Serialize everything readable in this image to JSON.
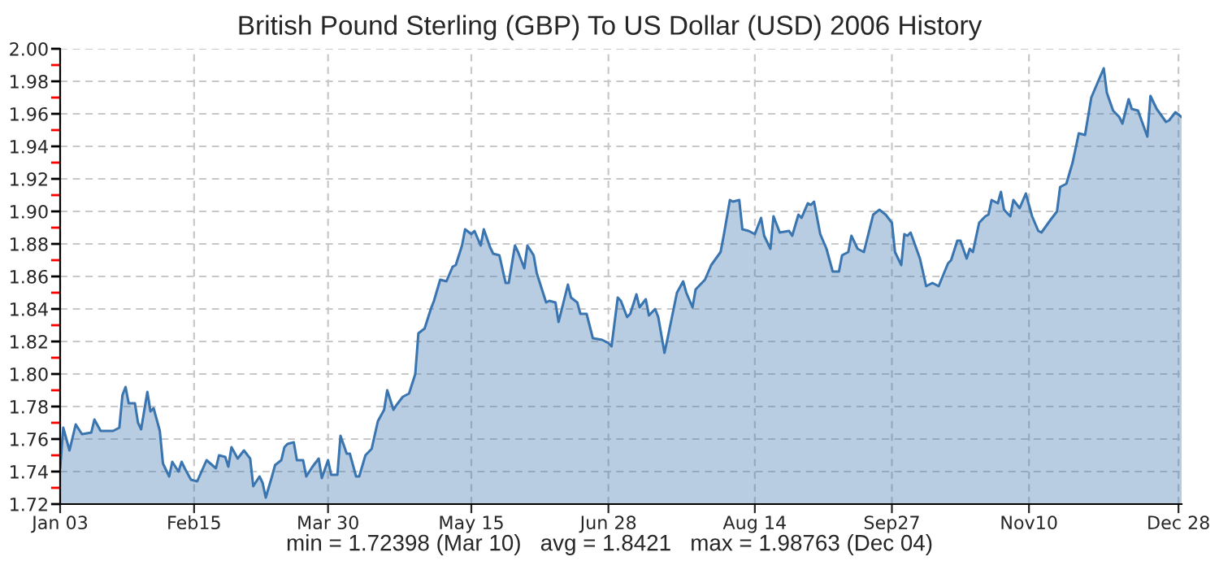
{
  "chart_data": {
    "type": "area",
    "title": "British Pound Sterling (GBP) To US Dollar (USD) 2006 History",
    "annotations": [
      "min = 1.72398 (Mar 10)   avg = 1.8421   max = 1.98763 (Dec 04)"
    ],
    "x": [
      "2006-01-03",
      "2006-01-04",
      "2006-01-06",
      "2006-01-08",
      "2006-01-10",
      "2006-01-13",
      "2006-01-14",
      "2006-01-16",
      "2006-01-20",
      "2006-01-22",
      "2006-01-23",
      "2006-01-24",
      "2006-01-25",
      "2006-01-27",
      "2006-01-28",
      "2006-01-29",
      "2006-01-31",
      "2006-02-01",
      "2006-02-02",
      "2006-02-04",
      "2006-02-05",
      "2006-02-07",
      "2006-02-08",
      "2006-02-10",
      "2006-02-11",
      "2006-02-12",
      "2006-02-14",
      "2006-02-16",
      "2006-02-19",
      "2006-02-22",
      "2006-02-23",
      "2006-02-25",
      "2006-02-26",
      "2006-02-27",
      "2006-03-01",
      "2006-03-03",
      "2006-03-05",
      "2006-03-06",
      "2006-03-08",
      "2006-03-09",
      "2006-03-10",
      "2006-03-12",
      "2006-03-13",
      "2006-03-15",
      "2006-03-16",
      "2006-03-17",
      "2006-03-19",
      "2006-03-20",
      "2006-03-22",
      "2006-03-23",
      "2006-03-25",
      "2006-03-27",
      "2006-03-28",
      "2006-03-30",
      "2006-03-31",
      "2006-04-02",
      "2006-04-03",
      "2006-04-05",
      "2006-04-06",
      "2006-04-08",
      "2006-04-09",
      "2006-04-11",
      "2006-04-13",
      "2006-04-15",
      "2006-04-17",
      "2006-04-18",
      "2006-04-20",
      "2006-04-21",
      "2006-04-23",
      "2006-04-25",
      "2006-04-27",
      "2006-04-28",
      "2006-04-30",
      "2006-05-02",
      "2006-05-03",
      "2006-05-05",
      "2006-05-07",
      "2006-05-09",
      "2006-05-10",
      "2006-05-12",
      "2006-05-13",
      "2006-05-15",
      "2006-05-16",
      "2006-05-18",
      "2006-05-19",
      "2006-05-21",
      "2006-05-22",
      "2006-05-24",
      "2006-05-26",
      "2006-05-27",
      "2006-05-29",
      "2006-05-30",
      "2006-06-01",
      "2006-06-02",
      "2006-06-04",
      "2006-06-05",
      "2006-06-08",
      "2006-06-09",
      "2006-06-11",
      "2006-06-12",
      "2006-06-15",
      "2006-06-16",
      "2006-06-18",
      "2006-06-19",
      "2006-06-21",
      "2006-06-23",
      "2006-06-26",
      "2006-06-28",
      "2006-06-29",
      "2006-07-01",
      "2006-07-02",
      "2006-07-04",
      "2006-07-05",
      "2006-07-07",
      "2006-07-08",
      "2006-07-10",
      "2006-07-11",
      "2006-07-13",
      "2006-07-14",
      "2006-07-16",
      "2006-07-17",
      "2006-07-20",
      "2006-07-22",
      "2006-07-23",
      "2006-07-25",
      "2006-07-26",
      "2006-07-29",
      "2006-07-31",
      "2006-08-03",
      "2006-08-04",
      "2006-08-06",
      "2006-08-07",
      "2006-08-09",
      "2006-08-10",
      "2006-08-12",
      "2006-08-14",
      "2006-08-16",
      "2006-08-17",
      "2006-08-19",
      "2006-08-20",
      "2006-08-22",
      "2006-08-25",
      "2006-08-26",
      "2006-08-28",
      "2006-08-29",
      "2006-08-31",
      "2006-09-01",
      "2006-09-02",
      "2006-09-04",
      "2006-09-06",
      "2006-09-08",
      "2006-09-10",
      "2006-09-11",
      "2006-09-13",
      "2006-09-14",
      "2006-09-16",
      "2006-09-18",
      "2006-09-21",
      "2006-09-23",
      "2006-09-25",
      "2006-09-27",
      "2006-09-28",
      "2006-09-30",
      "2006-10-01",
      "2006-10-02",
      "2006-10-03",
      "2006-10-06",
      "2006-10-08",
      "2006-10-10",
      "2006-10-12",
      "2006-10-15",
      "2006-10-16",
      "2006-10-18",
      "2006-10-19",
      "2006-10-21",
      "2006-10-22",
      "2006-10-23",
      "2006-10-25",
      "2006-10-27",
      "2006-10-28",
      "2006-10-29",
      "2006-10-31",
      "2006-11-01",
      "2006-11-02",
      "2006-11-04",
      "2006-11-05",
      "2006-11-07",
      "2006-11-09",
      "2006-11-11",
      "2006-11-13",
      "2006-11-14",
      "2006-11-17",
      "2006-11-19",
      "2006-11-20",
      "2006-11-22",
      "2006-11-24",
      "2006-11-26",
      "2006-11-28",
      "2006-11-30",
      "2006-12-04",
      "2006-12-05",
      "2006-12-07",
      "2006-12-09",
      "2006-12-10",
      "2006-12-12",
      "2006-12-13",
      "2006-12-15",
      "2006-12-18",
      "2006-12-19",
      "2006-12-21",
      "2006-12-24",
      "2006-12-25",
      "2006-12-27",
      "2006-12-29"
    ],
    "series": [
      {
        "color": "#3a75b0",
        "values": [
          1.742,
          1.767,
          1.753,
          1.769,
          1.763,
          1.764,
          1.772,
          1.765,
          1.765,
          1.767,
          1.787,
          1.792,
          1.782,
          1.782,
          1.77,
          1.766,
          1.789,
          1.777,
          1.779,
          1.765,
          1.745,
          1.737,
          1.746,
          1.74,
          1.746,
          1.742,
          1.735,
          1.734,
          1.747,
          1.742,
          1.75,
          1.749,
          1.743,
          1.755,
          1.748,
          1.753,
          1.748,
          1.731,
          1.737,
          1.733,
          1.724,
          1.737,
          1.744,
          1.747,
          1.755,
          1.757,
          1.758,
          1.747,
          1.747,
          1.737,
          1.743,
          1.748,
          1.736,
          1.747,
          1.738,
          1.738,
          1.762,
          1.751,
          1.751,
          1.737,
          1.737,
          1.75,
          1.754,
          1.771,
          1.778,
          1.79,
          1.778,
          1.781,
          1.786,
          1.788,
          1.8,
          1.825,
          1.828,
          1.84,
          1.845,
          1.858,
          1.857,
          1.866,
          1.867,
          1.879,
          1.889,
          1.886,
          1.888,
          1.879,
          1.889,
          1.878,
          1.874,
          1.873,
          1.856,
          1.856,
          1.879,
          1.875,
          1.865,
          1.879,
          1.873,
          1.862,
          1.844,
          1.845,
          1.844,
          1.832,
          1.855,
          1.847,
          1.844,
          1.837,
          1.837,
          1.822,
          1.821,
          1.819,
          1.817,
          1.847,
          1.845,
          1.835,
          1.837,
          1.849,
          1.841,
          1.846,
          1.836,
          1.84,
          1.835,
          1.813,
          1.822,
          1.85,
          1.857,
          1.85,
          1.841,
          1.852,
          1.858,
          1.867,
          1.875,
          1.885,
          1.907,
          1.906,
          1.907,
          1.889,
          1.888,
          1.886,
          1.896,
          1.885,
          1.877,
          1.897,
          1.887,
          1.888,
          1.885,
          1.898,
          1.896,
          1.905,
          1.904,
          1.906,
          1.886,
          1.877,
          1.863,
          1.863,
          1.873,
          1.875,
          1.885,
          1.877,
          1.875,
          1.898,
          1.901,
          1.898,
          1.893,
          1.875,
          1.867,
          1.886,
          1.885,
          1.887,
          1.871,
          1.854,
          1.856,
          1.854,
          1.868,
          1.87,
          1.882,
          1.882,
          1.871,
          1.877,
          1.875,
          1.893,
          1.897,
          1.898,
          1.907,
          1.905,
          1.912,
          1.901,
          1.897,
          1.907,
          1.902,
          1.911,
          1.897,
          1.888,
          1.887,
          1.895,
          1.9,
          1.915,
          1.917,
          1.93,
          1.948,
          1.947,
          1.97,
          1.988,
          1.973,
          1.962,
          1.958,
          1.954,
          1.969,
          1.963,
          1.962,
          1.946,
          1.971,
          1.963,
          1.955,
          1.956,
          1.961,
          1.958
        ]
      }
    ],
    "xlim": [
      "2006-01-03",
      "2006-12-29"
    ],
    "xticks": [
      {
        "value": "2006-01-03",
        "label": "Jan 03"
      },
      {
        "value": "2006-02-15",
        "label": "Feb15"
      },
      {
        "value": "2006-03-30",
        "label": "Mar 30"
      },
      {
        "value": "2006-05-15",
        "label": "May 15"
      },
      {
        "value": "2006-06-28",
        "label": "Jun 28"
      },
      {
        "value": "2006-08-14",
        "label": "Aug 14"
      },
      {
        "value": "2006-09-27",
        "label": "Sep27"
      },
      {
        "value": "2006-11-10",
        "label": "Nov10"
      },
      {
        "value": "2006-12-28",
        "label": "Dec 28"
      }
    ],
    "ylim": [
      1.72,
      2.0
    ],
    "yticks": [
      1.72,
      {
        "value": 1.73,
        "label": null
      },
      1.74,
      {
        "value": 1.75,
        "label": null
      },
      1.76,
      {
        "value": 1.77,
        "label": null
      },
      1.78,
      {
        "value": 1.79,
        "label": null
      },
      {
        "value": 1.8,
        "label": "1.80"
      },
      {
        "value": 1.81,
        "label": null
      },
      1.82,
      {
        "value": 1.83,
        "label": null
      },
      1.84,
      {
        "value": 1.85,
        "label": null
      },
      1.86,
      {
        "value": 1.87,
        "label": null
      },
      1.88,
      {
        "value": 1.89,
        "label": null
      },
      {
        "value": 1.9,
        "label": "1.90"
      },
      {
        "value": 1.91,
        "label": null
      },
      1.92,
      {
        "value": 1.93,
        "label": null
      },
      1.94,
      {
        "value": 1.95,
        "label": null
      },
      1.96,
      {
        "value": 1.97,
        "label": null
      },
      1.98,
      {
        "value": 1.99,
        "label": null
      },
      {
        "value": 2.0,
        "label": "2.00"
      }
    ],
    "grid": true,
    "legend": false,
    "marker": "none",
    "line_style": "solid"
  }
}
